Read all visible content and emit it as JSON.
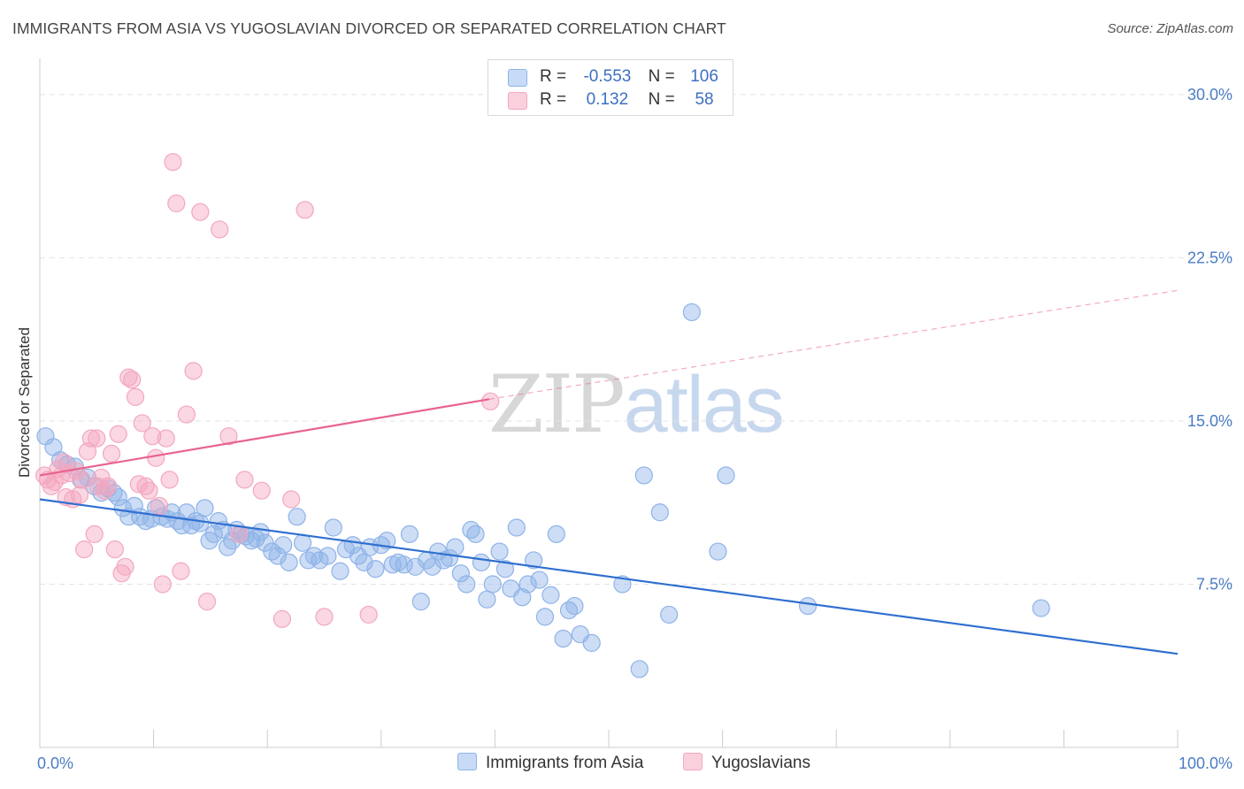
{
  "header": {
    "title": "IMMIGRANTS FROM ASIA VS YUGOSLAVIAN DIVORCED OR SEPARATED CORRELATION CHART",
    "source": "Source: ZipAtlas.com"
  },
  "watermark": {
    "zip": "ZIP",
    "atlas": "atlas"
  },
  "legend": {
    "r_label": "R =",
    "n_label": "N =",
    "series": [
      {
        "r": "-0.553",
        "n": "106",
        "color": "#8fb3e8"
      },
      {
        "r": "0.132",
        "n": "58",
        "color": "#f4a7bf"
      }
    ]
  },
  "bottom_legend": [
    "Immigrants from Asia",
    "Yugoslavians"
  ],
  "chart_data": {
    "type": "scatter",
    "title": "IMMIGRANTS FROM ASIA VS YUGOSLAVIAN DIVORCED OR SEPARATED CORRELATION CHART",
    "ylabel": "Divorced or Separated",
    "xlabel": "",
    "xlim": [
      0,
      100
    ],
    "ylim": [
      0,
      31.5
    ],
    "x_tick_labels": [
      "0.0%",
      "100.0%"
    ],
    "y_ticks": [
      7.5,
      15.0,
      22.5,
      30.0
    ],
    "y_tick_labels": [
      "7.5%",
      "15.0%",
      "22.5%",
      "30.0%"
    ],
    "grid": true,
    "legend_position": "top-center",
    "series": [
      {
        "name": "Immigrants from Asia",
        "color": "#8fb3e8",
        "line_color": "#2f6fd0",
        "trend": {
          "x0": 0,
          "y0": 11.4,
          "x1": 100,
          "y1": 4.3
        },
        "points": [
          [
            0.5,
            14.3
          ],
          [
            1.2,
            13.8
          ],
          [
            1.8,
            13.2
          ],
          [
            2.4,
            13.0
          ],
          [
            3.1,
            12.9
          ],
          [
            3.6,
            12.3
          ],
          [
            4.2,
            12.4
          ],
          [
            4.8,
            12.0
          ],
          [
            5.4,
            11.7
          ],
          [
            6.0,
            11.9
          ],
          [
            6.5,
            11.7
          ],
          [
            6.9,
            11.5
          ],
          [
            7.3,
            11.0
          ],
          [
            7.8,
            10.6
          ],
          [
            8.3,
            11.1
          ],
          [
            8.8,
            10.6
          ],
          [
            9.3,
            10.4
          ],
          [
            9.8,
            10.5
          ],
          [
            10.2,
            11.0
          ],
          [
            10.7,
            10.6
          ],
          [
            11.2,
            10.5
          ],
          [
            11.6,
            10.8
          ],
          [
            12.1,
            10.4
          ],
          [
            12.5,
            10.2
          ],
          [
            12.9,
            10.8
          ],
          [
            13.3,
            10.2
          ],
          [
            13.7,
            10.4
          ],
          [
            14.1,
            10.3
          ],
          [
            14.5,
            11.0
          ],
          [
            14.9,
            9.5
          ],
          [
            15.3,
            9.8
          ],
          [
            15.7,
            10.4
          ],
          [
            16.1,
            10.0
          ],
          [
            16.5,
            9.2
          ],
          [
            16.9,
            9.5
          ],
          [
            17.3,
            10.0
          ],
          [
            17.7,
            9.8
          ],
          [
            18.1,
            9.7
          ],
          [
            18.6,
            9.5
          ],
          [
            19.0,
            9.6
          ],
          [
            19.4,
            9.9
          ],
          [
            19.8,
            9.4
          ],
          [
            20.4,
            9.0
          ],
          [
            20.9,
            8.8
          ],
          [
            21.4,
            9.3
          ],
          [
            21.9,
            8.5
          ],
          [
            22.6,
            10.6
          ],
          [
            23.1,
            9.4
          ],
          [
            23.6,
            8.6
          ],
          [
            24.1,
            8.8
          ],
          [
            24.6,
            8.6
          ],
          [
            25.3,
            8.8
          ],
          [
            25.8,
            10.1
          ],
          [
            26.4,
            8.1
          ],
          [
            26.9,
            9.1
          ],
          [
            27.5,
            9.3
          ],
          [
            28.0,
            8.8
          ],
          [
            28.5,
            8.5
          ],
          [
            29.0,
            9.2
          ],
          [
            29.5,
            8.2
          ],
          [
            30.0,
            9.3
          ],
          [
            30.5,
            9.5
          ],
          [
            31.0,
            8.4
          ],
          [
            31.5,
            8.5
          ],
          [
            32.0,
            8.4
          ],
          [
            32.5,
            9.8
          ],
          [
            33.0,
            8.3
          ],
          [
            33.5,
            6.7
          ],
          [
            34.0,
            8.6
          ],
          [
            34.5,
            8.3
          ],
          [
            35.0,
            9.0
          ],
          [
            35.5,
            8.6
          ],
          [
            36.0,
            8.7
          ],
          [
            36.5,
            9.2
          ],
          [
            37.0,
            8.0
          ],
          [
            37.5,
            7.5
          ],
          [
            37.9,
            10.0
          ],
          [
            38.3,
            9.8
          ],
          [
            38.8,
            8.5
          ],
          [
            39.3,
            6.8
          ],
          [
            39.8,
            7.5
          ],
          [
            40.4,
            9.0
          ],
          [
            40.9,
            8.2
          ],
          [
            41.4,
            7.3
          ],
          [
            41.9,
            10.1
          ],
          [
            42.4,
            6.9
          ],
          [
            42.9,
            7.5
          ],
          [
            43.4,
            8.6
          ],
          [
            43.9,
            7.7
          ],
          [
            44.4,
            6.0
          ],
          [
            44.9,
            7.0
          ],
          [
            45.4,
            9.8
          ],
          [
            46.0,
            5.0
          ],
          [
            46.5,
            6.3
          ],
          [
            47.0,
            6.5
          ],
          [
            47.5,
            5.2
          ],
          [
            48.5,
            4.8
          ],
          [
            51.2,
            7.5
          ],
          [
            52.7,
            3.6
          ],
          [
            55.3,
            6.1
          ],
          [
            53.1,
            12.5
          ],
          [
            54.5,
            10.8
          ],
          [
            57.3,
            20.0
          ],
          [
            60.3,
            12.5
          ],
          [
            59.6,
            9.0
          ],
          [
            67.5,
            6.5
          ],
          [
            88.0,
            6.4
          ]
        ]
      },
      {
        "name": "Yugoslavians",
        "color": "#f4a7bf",
        "line_color": "#e8638f",
        "trend": {
          "x0": 0,
          "y0": 12.5,
          "x1": 39.5,
          "y1": 16.0
        },
        "trend_dashed": {
          "x0": 39.5,
          "y0": 16.0,
          "x1": 100,
          "y1": 21.0
        },
        "points": [
          [
            0.4,
            12.5
          ],
          [
            0.7,
            12.3
          ],
          [
            1.0,
            12.0
          ],
          [
            1.3,
            12.2
          ],
          [
            1.6,
            12.8
          ],
          [
            1.9,
            12.5
          ],
          [
            2.1,
            13.1
          ],
          [
            2.3,
            11.5
          ],
          [
            2.6,
            12.6
          ],
          [
            2.9,
            11.4
          ],
          [
            3.2,
            12.7
          ],
          [
            3.5,
            11.6
          ],
          [
            3.7,
            12.3
          ],
          [
            3.9,
            9.1
          ],
          [
            4.2,
            13.6
          ],
          [
            4.5,
            14.2
          ],
          [
            4.8,
            9.8
          ],
          [
            5.1,
            12.0
          ],
          [
            5.4,
            12.4
          ],
          [
            5.7,
            11.8
          ],
          [
            6.0,
            12.0
          ],
          [
            6.3,
            13.5
          ],
          [
            6.6,
            9.1
          ],
          [
            6.9,
            14.4
          ],
          [
            7.2,
            8.0
          ],
          [
            7.5,
            8.3
          ],
          [
            7.8,
            17.0
          ],
          [
            8.1,
            16.9
          ],
          [
            8.4,
            16.1
          ],
          [
            8.7,
            12.1
          ],
          [
            9.0,
            14.9
          ],
          [
            9.3,
            12.0
          ],
          [
            9.6,
            11.8
          ],
          [
            9.9,
            14.3
          ],
          [
            10.2,
            13.3
          ],
          [
            10.5,
            11.1
          ],
          [
            10.8,
            7.5
          ],
          [
            11.1,
            14.2
          ],
          [
            11.4,
            12.3
          ],
          [
            11.7,
            26.9
          ],
          [
            12.0,
            25.0
          ],
          [
            12.4,
            8.1
          ],
          [
            12.9,
            15.3
          ],
          [
            13.5,
            17.3
          ],
          [
            14.1,
            24.6
          ],
          [
            14.7,
            6.7
          ],
          [
            15.8,
            23.8
          ],
          [
            16.6,
            14.3
          ],
          [
            17.5,
            9.8
          ],
          [
            18.0,
            12.3
          ],
          [
            19.5,
            11.8
          ],
          [
            21.3,
            5.9
          ],
          [
            22.1,
            11.4
          ],
          [
            23.3,
            24.7
          ],
          [
            25.0,
            6.0
          ],
          [
            28.9,
            6.1
          ],
          [
            39.6,
            15.9
          ],
          [
            5.0,
            14.2
          ]
        ]
      }
    ]
  }
}
